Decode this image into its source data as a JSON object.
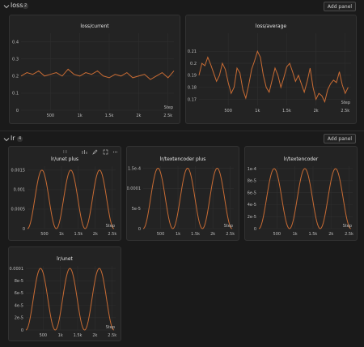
{
  "sections": {
    "loss": {
      "title": "loss",
      "count": "2",
      "add_panel": "Add panel"
    },
    "lr": {
      "title": "lr",
      "count": "4",
      "add_panel": "Add panel"
    }
  },
  "colors": {
    "line": "#c96c34",
    "grid": "#2f2f2f",
    "bg": "#1a1a1a",
    "panel": "#232323"
  },
  "icons": {
    "collapse": "chevron-down-icon",
    "panel_toolbar": [
      "grid-icon",
      "chart-icon",
      "pencil-icon",
      "expand-icon",
      "more-icon"
    ]
  },
  "chart_data": [
    {
      "id": "loss-current",
      "type": "line",
      "title": "loss/current",
      "xlabel": "Step",
      "ylabel": "",
      "xlim": [
        0,
        2600
      ],
      "ylim": [
        0,
        0.45
      ],
      "xticks": [
        500,
        1000,
        1500,
        2000,
        2500
      ],
      "xtick_labels": [
        "500",
        "1k",
        "1.5k",
        "2k",
        "2.5k"
      ],
      "yticks": [
        0,
        0.1,
        0.2,
        0.3,
        0.4
      ],
      "ytick_labels": [
        "0",
        "0.1",
        "0.2",
        "0.3",
        "0.4"
      ],
      "series": [
        {
          "x": [
            0,
            100,
            200,
            300,
            400,
            500,
            600,
            700,
            800,
            900,
            1000,
            1100,
            1200,
            1300,
            1400,
            1500,
            1600,
            1700,
            1800,
            1900,
            2000,
            2100,
            2200,
            2300,
            2400,
            2500,
            2600
          ],
          "y": [
            0.2,
            0.22,
            0.21,
            0.23,
            0.2,
            0.21,
            0.22,
            0.2,
            0.24,
            0.21,
            0.2,
            0.22,
            0.21,
            0.23,
            0.2,
            0.19,
            0.21,
            0.2,
            0.22,
            0.19,
            0.2,
            0.21,
            0.18,
            0.2,
            0.22,
            0.19,
            0.23
          ]
        }
      ]
    },
    {
      "id": "loss-average",
      "type": "line",
      "title": "loss/average",
      "xlabel": "Step",
      "ylabel": "",
      "xlim": [
        0,
        2600
      ],
      "ylim": [
        0.165,
        0.225
      ],
      "xticks": [
        500,
        1000,
        1500,
        2000,
        2500
      ],
      "xtick_labels": [
        "500",
        "1k",
        "1.5k",
        "2k",
        "2.5k"
      ],
      "yticks": [
        0.17,
        0.18,
        0.19,
        0.2,
        0.21
      ],
      "ytick_labels": [
        "0.17",
        "0.18",
        "0.19",
        "0.2",
        "0.21"
      ],
      "series": [
        {
          "x": [
            0,
            50,
            100,
            150,
            200,
            250,
            300,
            350,
            400,
            450,
            500,
            550,
            600,
            650,
            700,
            750,
            800,
            850,
            900,
            950,
            1000,
            1050,
            1100,
            1150,
            1200,
            1250,
            1300,
            1350,
            1400,
            1450,
            1500,
            1550,
            1600,
            1650,
            1700,
            1750,
            1800,
            1850,
            1900,
            1950,
            2000,
            2050,
            2100,
            2150,
            2200,
            2250,
            2300,
            2350,
            2400,
            2450,
            2500,
            2550
          ],
          "y": [
            0.19,
            0.2,
            0.198,
            0.205,
            0.199,
            0.192,
            0.185,
            0.19,
            0.2,
            0.195,
            0.184,
            0.175,
            0.18,
            0.196,
            0.192,
            0.178,
            0.171,
            0.182,
            0.195,
            0.202,
            0.21,
            0.205,
            0.19,
            0.18,
            0.176,
            0.186,
            0.196,
            0.19,
            0.18,
            0.188,
            0.197,
            0.2,
            0.193,
            0.185,
            0.19,
            0.183,
            0.176,
            0.185,
            0.196,
            0.18,
            0.17,
            0.175,
            0.173,
            0.168,
            0.178,
            0.183,
            0.186,
            0.184,
            0.193,
            0.182,
            0.175,
            0.18
          ]
        }
      ]
    },
    {
      "id": "lr-unet-plus",
      "type": "line",
      "title": "lr/unet plus",
      "xlabel": "Step",
      "ylabel": "",
      "xlim": [
        0,
        2600
      ],
      "ylim": [
        0,
        0.0016
      ],
      "xticks": [
        500,
        1000,
        1500,
        2000,
        2500
      ],
      "xtick_labels": [
        "500",
        "1k",
        "1.5k",
        "2k",
        "2.5k"
      ],
      "yticks": [
        0,
        0.0005,
        0.001,
        0.0015
      ],
      "ytick_labels": [
        "0",
        "0.0005",
        "0.001",
        "0.0015"
      ],
      "wave": {
        "amplitude": 0.0015,
        "period": 850,
        "points": 140,
        "x_end": 2550
      }
    },
    {
      "id": "lr-textencoder-plus",
      "type": "line",
      "title": "lr/textencoder plus",
      "xlabel": "Step",
      "ylabel": "",
      "xlim": [
        0,
        2600
      ],
      "ylim": [
        0,
        0.000155
      ],
      "xticks": [
        500,
        1000,
        1500,
        2000,
        2500
      ],
      "xtick_labels": [
        "500",
        "1k",
        "1.5k",
        "2k",
        "2.5k"
      ],
      "yticks": [
        0,
        5e-05,
        0.0001,
        0.00015
      ],
      "ytick_labels": [
        "0",
        "5e-5",
        "0.0001",
        "1.5e-4"
      ],
      "wave": {
        "amplitude": 0.00015,
        "period": 850,
        "points": 140,
        "x_end": 2550
      }
    },
    {
      "id": "lr-textencoder",
      "type": "line",
      "title": "lr/textencoder",
      "xlabel": "Step",
      "ylabel": "",
      "xlim": [
        0,
        2600
      ],
      "ylim": [
        0,
        0.000104
      ],
      "xticks": [
        500,
        1000,
        1500,
        2000,
        2500
      ],
      "xtick_labels": [
        "500",
        "1k",
        "1.5k",
        "2k",
        "2.5k"
      ],
      "yticks": [
        0,
        2e-05,
        4e-05,
        6e-05,
        8e-05,
        0.0001
      ],
      "ytick_labels": [
        "0",
        "2e-5",
        "4e-5",
        "6e-5",
        "8e-5",
        "1e-4"
      ],
      "wave": {
        "amplitude": 0.0001,
        "period": 850,
        "points": 140,
        "x_end": 2550
      }
    },
    {
      "id": "lr-unet",
      "type": "line",
      "title": "lr/unet",
      "xlabel": "Step",
      "ylabel": "",
      "xlim": [
        0,
        2600
      ],
      "ylim": [
        0,
        0.000104
      ],
      "xticks": [
        500,
        1000,
        1500,
        2000,
        2500
      ],
      "xtick_labels": [
        "500",
        "1k",
        "1.5k",
        "2k",
        "2.5k"
      ],
      "yticks": [
        0,
        2e-05,
        4e-05,
        6e-05,
        8e-05,
        0.0001
      ],
      "ytick_labels": [
        "0",
        "2e-5",
        "4e-5",
        "6e-5",
        "8e-5",
        "0.0001"
      ],
      "wave": {
        "amplitude": 0.0001,
        "period": 850,
        "points": 140,
        "x_end": 2550
      }
    }
  ]
}
